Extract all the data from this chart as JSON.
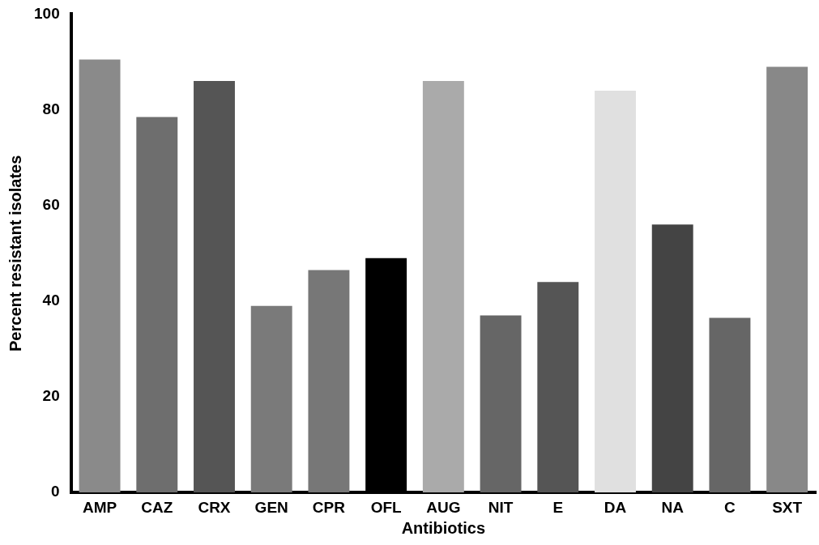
{
  "chart_data": {
    "type": "bar",
    "xlabel": "Antibiotics",
    "ylabel": "Percent resistant isolates",
    "categories": [
      "AMP",
      "CAZ",
      "CRX",
      "GEN",
      "CPR",
      "OFL",
      "AUG",
      "NIT",
      "E",
      "DA",
      "NA",
      "C",
      "SXT"
    ],
    "values": [
      90.5,
      78.5,
      86,
      39,
      46.5,
      49,
      86,
      37,
      44,
      84,
      56,
      36.5,
      89
    ],
    "colors": [
      "#8a8a8a",
      "#6e6e6e",
      "#555555",
      "#7a7a7a",
      "#777777",
      "#000000",
      "#aaaaaa",
      "#666666",
      "#555555",
      "#e0e0e0",
      "#444444",
      "#666666",
      "#888888"
    ],
    "ylim": [
      0,
      100
    ],
    "yticks": [
      0,
      20,
      40,
      60,
      80,
      100
    ],
    "grid": false,
    "legend": false
  }
}
